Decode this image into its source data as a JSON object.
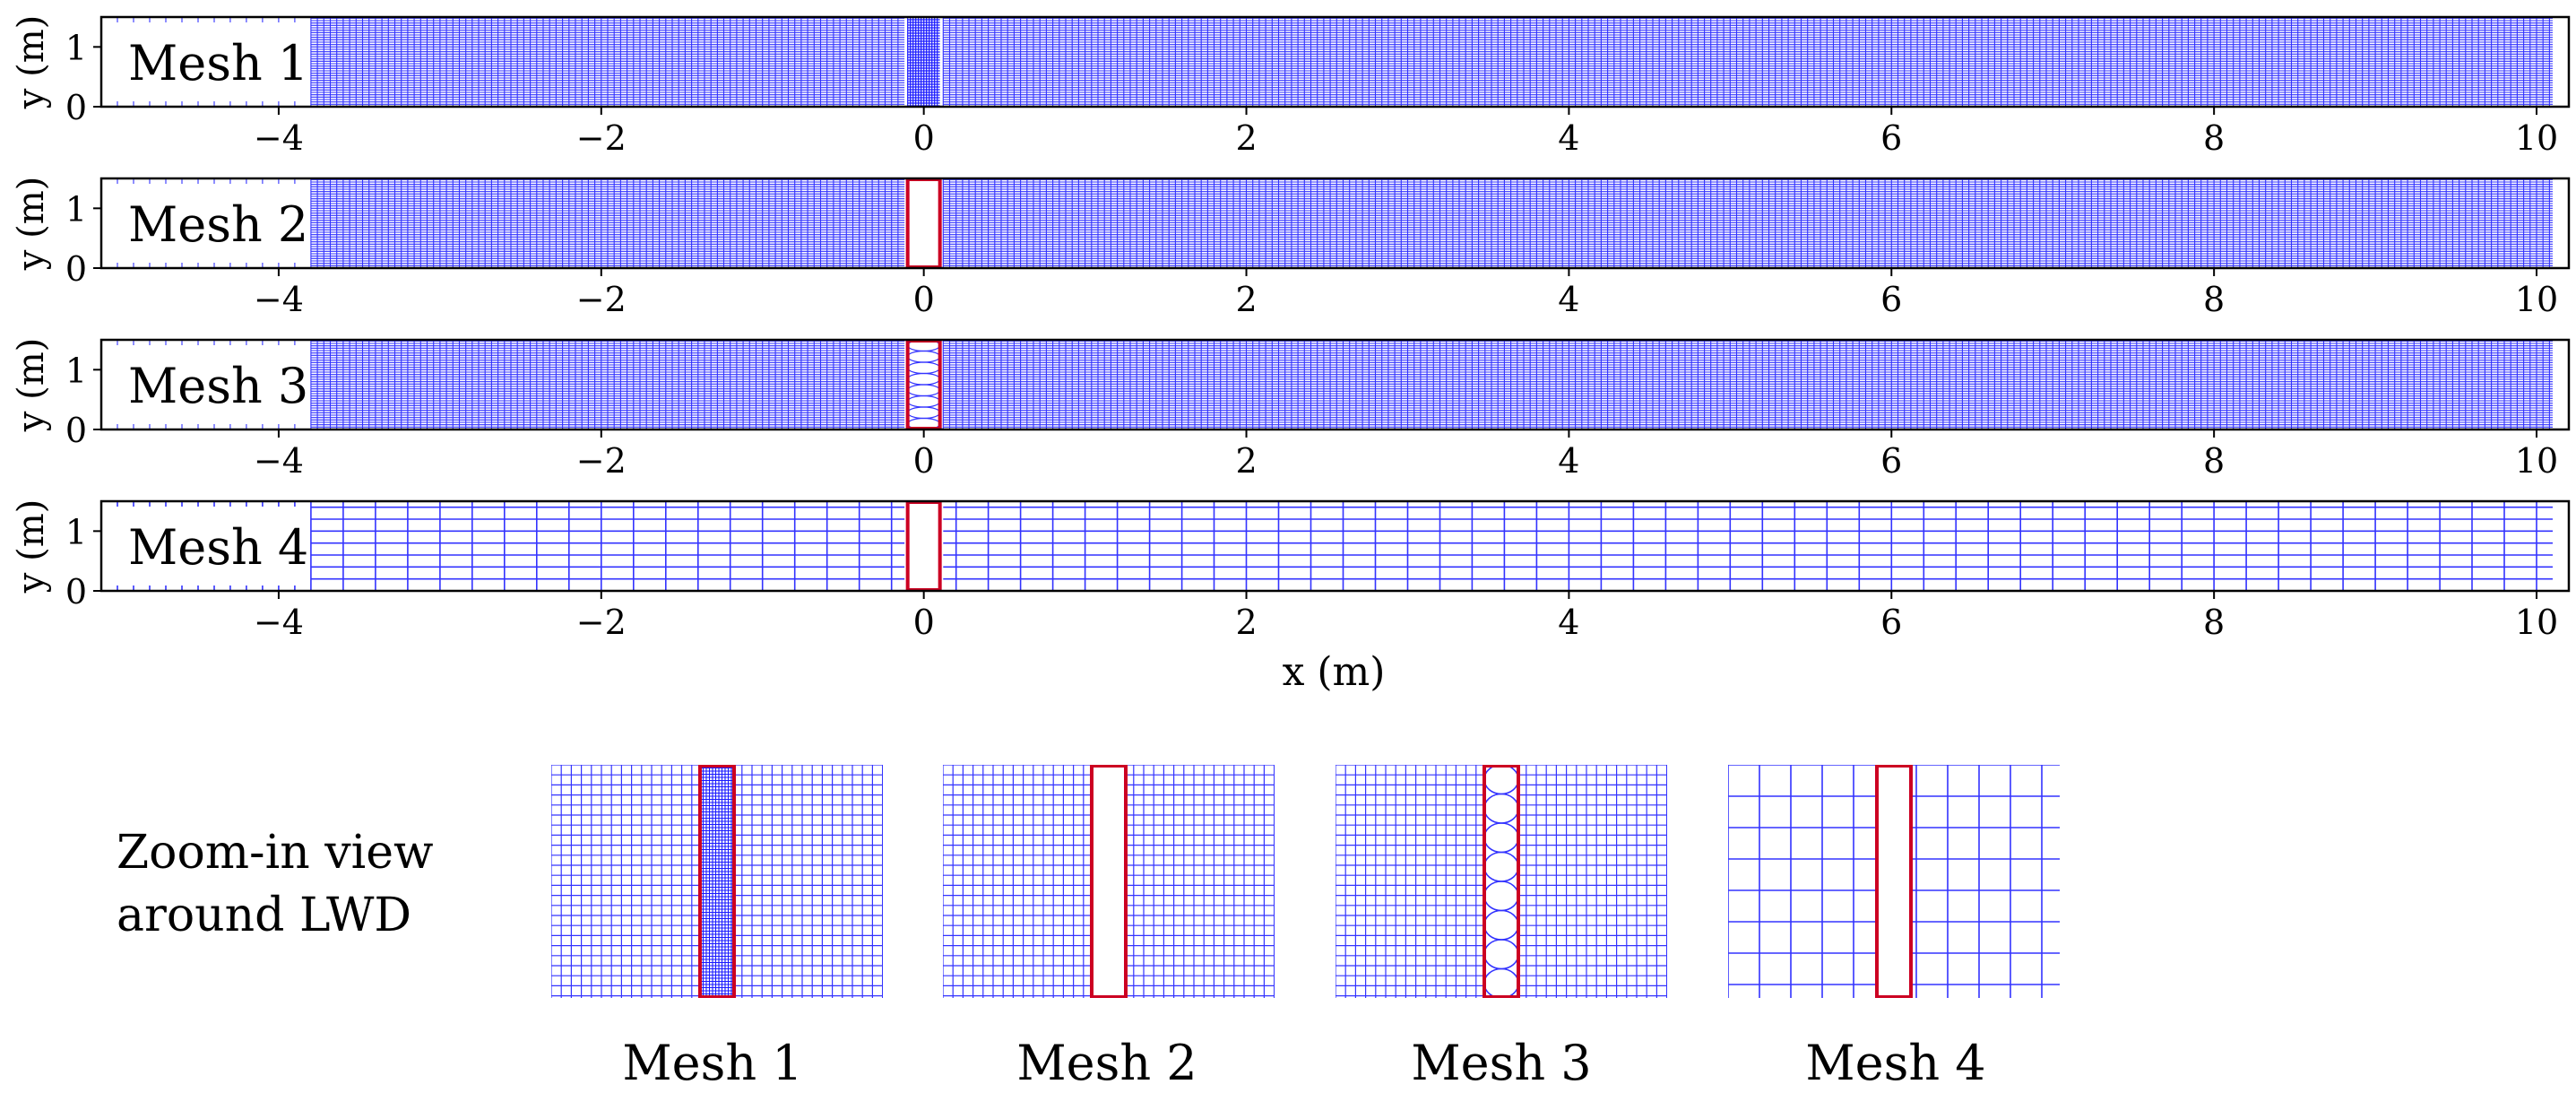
{
  "figure": {
    "x_label": "x (m)",
    "y_label": "y (m)",
    "x_ticks": [
      -4,
      -2,
      0,
      2,
      4,
      6,
      8,
      10
    ],
    "x_tick_labels": [
      "−4",
      "−2",
      "0",
      "2",
      "4",
      "6",
      "8",
      "10"
    ],
    "y_ticks": [
      0,
      1
    ],
    "y_tick_labels": [
      "0",
      "1"
    ],
    "x_range": [
      -5.1,
      10.2
    ],
    "y_range": [
      0,
      1.5
    ],
    "mesh_color": "#3333ff",
    "lwd_color": "#cc0022",
    "lwd_x_range": [
      -0.1,
      0.1
    ],
    "panels": [
      {
        "label": "Mesh 1",
        "cell_size": 0.04,
        "lwd_outline": false,
        "lwd_fill": "dense"
      },
      {
        "label": "Mesh 2",
        "cell_size": 0.04,
        "lwd_outline": true,
        "lwd_fill": "empty"
      },
      {
        "label": "Mesh 3",
        "cell_size": 0.04,
        "lwd_outline": true,
        "lwd_fill": "circles"
      },
      {
        "label": "Mesh 4",
        "cell_size": 0.2,
        "lwd_outline": true,
        "lwd_fill": "empty"
      }
    ],
    "zoom": {
      "caption_line1": "Zoom-in view",
      "caption_line2": "around LWD",
      "labels": [
        "Mesh 1",
        "Mesh 2",
        "Mesh 3",
        "Mesh 4"
      ]
    }
  }
}
